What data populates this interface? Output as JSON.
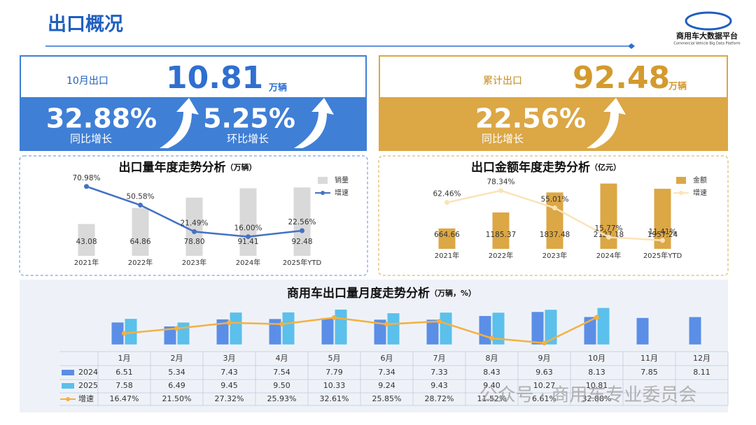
{
  "header": {
    "title": "出口概况",
    "logo": "商用车大数据平台",
    "logo_sub": "Commercial Vehicle Big Data Platform"
  },
  "kpis": [
    {
      "label": "10月出口",
      "value": "10.81",
      "unit": "万辆",
      "stats": [
        {
          "value": "32.88%",
          "label": "同比增长"
        },
        {
          "value": "5.25%",
          "label": "环比增长"
        }
      ]
    },
    {
      "label": "累计出口",
      "value": "92.48",
      "unit": "万辆",
      "stats": [
        {
          "value": "22.56%",
          "label": "同比增长"
        }
      ]
    }
  ],
  "chart_data": [
    {
      "type": "bar_line",
      "title": "出口量年度走势分析",
      "unit": "（万辆）",
      "categories": [
        "2021年",
        "2022年",
        "2023年",
        "2024年",
        "2025年YTD"
      ],
      "ylim": [
        0,
        105
      ],
      "y2lim": [
        -5,
        80
      ],
      "series": [
        {
          "name": "销量",
          "color": "#d9d9d9",
          "values": [
            43.08,
            64.86,
            78.8,
            91.41,
            92.48
          ],
          "value_labels": [
            "43.08",
            "64.86",
            "78.80",
            "91.41",
            "92.48"
          ]
        },
        {
          "name": "增速",
          "color": "#4472c4",
          "axis": "y2",
          "values": [
            70.98,
            50.58,
            21.49,
            16.0,
            22.56
          ],
          "value_labels": [
            "70.98%",
            "50.58%",
            "21.49%",
            "16.00%",
            "22.56%"
          ]
        }
      ]
    },
    {
      "type": "bar_line",
      "title": "出口金额年度走势分析",
      "unit": "（亿元）",
      "categories": [
        "2021年",
        "2022年",
        "2023年",
        "2024年",
        "2025年YTD"
      ],
      "ylim": [
        0,
        2300
      ],
      "y2lim": [
        0,
        95
      ],
      "series": [
        {
          "name": "金额",
          "color": "#dca745",
          "values": [
            664.66,
            1185.37,
            1837.48,
            2127.18,
            1957.24
          ],
          "value_labels": [
            "664.66",
            "1185.37",
            "1837.48",
            "2127.18",
            "1957.24"
          ]
        },
        {
          "name": "增速",
          "color": "#fbe3b8",
          "axis": "y2",
          "values": [
            62.46,
            78.34,
            55.01,
            15.77,
            11.41
          ],
          "value_labels": [
            "62.46%",
            "78.34%",
            "55.01%",
            "15.77%",
            "11.41%"
          ]
        }
      ]
    },
    {
      "type": "bar_line_table",
      "title": "商用车出口量月度走势分析",
      "unit": "（万辆，%）",
      "categories": [
        "1月",
        "2月",
        "3月",
        "4月",
        "5月",
        "6月",
        "7月",
        "8月",
        "9月",
        "10月",
        "11月",
        "12月"
      ],
      "ylim": [
        -1.5,
        13
      ],
      "y2lim": [
        0,
        50
      ],
      "series": [
        {
          "name": "2024",
          "color": "#5b8ee6",
          "values": [
            6.51,
            5.34,
            7.43,
            7.54,
            7.79,
            7.34,
            7.33,
            8.43,
            9.63,
            8.13,
            7.85,
            8.11
          ],
          "value_labels": [
            "6.51",
            "5.34",
            "7.43",
            "7.54",
            "7.79",
            "7.34",
            "7.33",
            "8.43",
            "9.63",
            "8.13",
            "7.85",
            "8.11"
          ]
        },
        {
          "name": "2025",
          "color": "#5bc0eb",
          "values": [
            7.58,
            6.49,
            9.45,
            9.5,
            10.33,
            9.24,
            9.43,
            9.4,
            10.27,
            10.81,
            null,
            null
          ],
          "value_labels": [
            "7.58",
            "6.49",
            "9.45",
            "9.50",
            "10.33",
            "9.24",
            "9.43",
            "9.40",
            "10.27",
            "10.81",
            null,
            null
          ]
        },
        {
          "name": "增速",
          "color": "#f5b042",
          "axis": "y2",
          "values": [
            16.47,
            21.5,
            27.32,
            25.93,
            32.61,
            25.85,
            28.72,
            11.52,
            6.61,
            32.88,
            null,
            null
          ],
          "value_labels": [
            "16.47%",
            "21.50%",
            "27.32%",
            "25.93%",
            "32.61%",
            "25.85%",
            "28.72%",
            "11.52%",
            "6.61%",
            "32.88%",
            null,
            null
          ]
        }
      ]
    }
  ],
  "watermark": "公众号 · 商用车专业委员会"
}
